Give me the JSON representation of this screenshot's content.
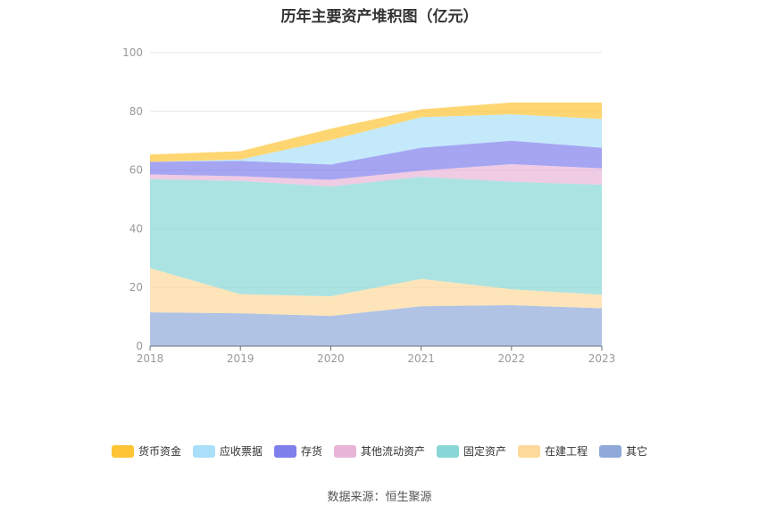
{
  "title": "历年主要资产堆积图（亿元）",
  "source": "数据来源：恒生聚源",
  "chart_data": {
    "type": "area",
    "stacked": true,
    "x": [
      "2018",
      "2019",
      "2020",
      "2021",
      "2022",
      "2023"
    ],
    "ylim": [
      0,
      100
    ],
    "yticks": [
      0,
      20,
      40,
      60,
      80,
      100
    ],
    "grid": true,
    "legend_position": "bottom",
    "series": [
      {
        "name": "其它",
        "color": "#8fa9d8",
        "values": [
          11.5,
          11.2,
          10.3,
          13.6,
          14.0,
          12.9
        ]
      },
      {
        "name": "在建工程",
        "color": "#fdd99b",
        "values": [
          15.1,
          6.5,
          6.7,
          9.3,
          5.4,
          4.6
        ]
      },
      {
        "name": "固定资产",
        "color": "#88d7d6",
        "values": [
          30.3,
          38.6,
          37.4,
          34.8,
          36.6,
          37.5
        ]
      },
      {
        "name": "其他流动资产",
        "color": "#e8b5d8",
        "values": [
          1.6,
          1.6,
          2.3,
          2.1,
          6.0,
          5.6
        ]
      },
      {
        "name": "存货",
        "color": "#7f7fec",
        "values": [
          4.3,
          5.2,
          5.2,
          7.8,
          8.0,
          7.0
        ]
      },
      {
        "name": "应收票据",
        "color": "#a9dff8",
        "values": [
          0.0,
          0.5,
          8.3,
          10.4,
          9.0,
          9.8
        ]
      },
      {
        "name": "货币资金",
        "color": "#fdc535",
        "values": [
          2.5,
          2.8,
          3.9,
          2.7,
          4.0,
          5.6
        ]
      }
    ]
  }
}
